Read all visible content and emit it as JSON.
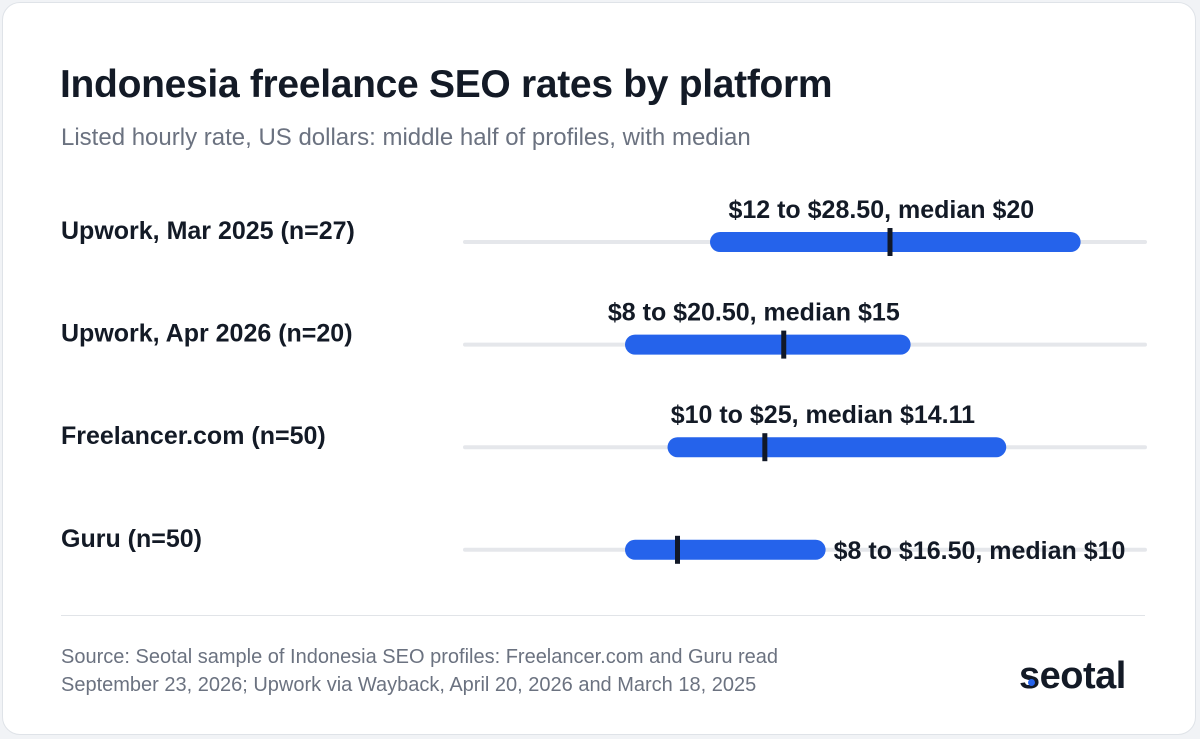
{
  "colors": {
    "accent": "#2563eb",
    "median": "#111827",
    "track": "#e5e7eb",
    "text": "#131a26",
    "muted": "#6b7280"
  },
  "chart_data": {
    "type": "range",
    "title": "Indonesia freelance SEO rates by platform",
    "subtitle": "Listed hourly rate, US dollars: middle half of profiles, with median",
    "unit": "USD per hour",
    "rows": [
      {
        "label": "Upwork, Mar 2025 (n=27)",
        "low": 12,
        "high": 28.5,
        "median": 20,
        "annotation": "$12 to $28.50, median $20",
        "annotation_position": "above"
      },
      {
        "label": "Upwork, Apr 2026 (n=20)",
        "low": 8,
        "high": 20.5,
        "median": 15,
        "annotation": "$8 to $20.50, median $15",
        "annotation_position": "above"
      },
      {
        "label": "Freelancer.com (n=50)",
        "low": 10,
        "high": 25,
        "median": 14.11,
        "annotation": "$10 to $25, median $14.11",
        "annotation_position": "above"
      },
      {
        "label": "Guru (n=50)",
        "low": 8,
        "high": 16.5,
        "median": 10,
        "annotation": "$8 to $16.50, median $10",
        "annotation_position": "right"
      }
    ]
  },
  "footer": {
    "source": "Source: Seotal sample of Indonesia SEO profiles: Freelancer.com and Guru read September 23, 2026; Upwork via Wayback, April 20, 2026 and March 18, 2025",
    "logo": "seotal"
  }
}
